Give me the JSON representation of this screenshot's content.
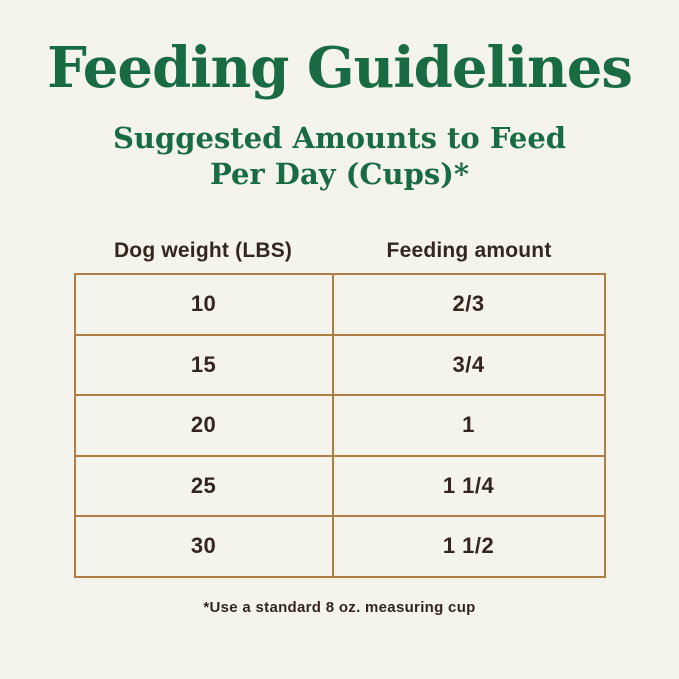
{
  "page": {
    "title": "Feeding Guidelines",
    "subtitle_line1": "Suggested Amounts to Feed",
    "subtitle_line2": "Per Day (Cups)*",
    "footnote": "*Use a standard 8 oz. measuring cup"
  },
  "table": {
    "columns": {
      "weight": "Dog weight (LBS)",
      "amount": "Feeding amount"
    },
    "rows": [
      {
        "weight": "10",
        "amount": "2/3"
      },
      {
        "weight": "15",
        "amount": "3/4"
      },
      {
        "weight": "20",
        "amount": "1"
      },
      {
        "weight": "25",
        "amount": "1 1/4"
      },
      {
        "weight": "30",
        "amount": "1 1/2"
      }
    ]
  },
  "colors": {
    "background": "#F5F4EC",
    "title_green": "#186B43",
    "border_brown": "#AF7E45",
    "text_dark": "#33261F"
  },
  "chart_data": {
    "type": "table",
    "title": "Feeding Guidelines",
    "subtitle": "Suggested Amounts to Feed Per Day (Cups)*",
    "columns": [
      "Dog weight (LBS)",
      "Feeding amount"
    ],
    "rows": [
      [
        "10",
        "2/3"
      ],
      [
        "15",
        "3/4"
      ],
      [
        "20",
        "1"
      ],
      [
        "25",
        "1 1/4"
      ],
      [
        "30",
        "1 1/2"
      ]
    ],
    "footnote": "*Use a standard 8 oz. measuring cup",
    "layout_hints": {
      "legend": "none",
      "grid": "full-borders",
      "alignment": "center"
    }
  }
}
